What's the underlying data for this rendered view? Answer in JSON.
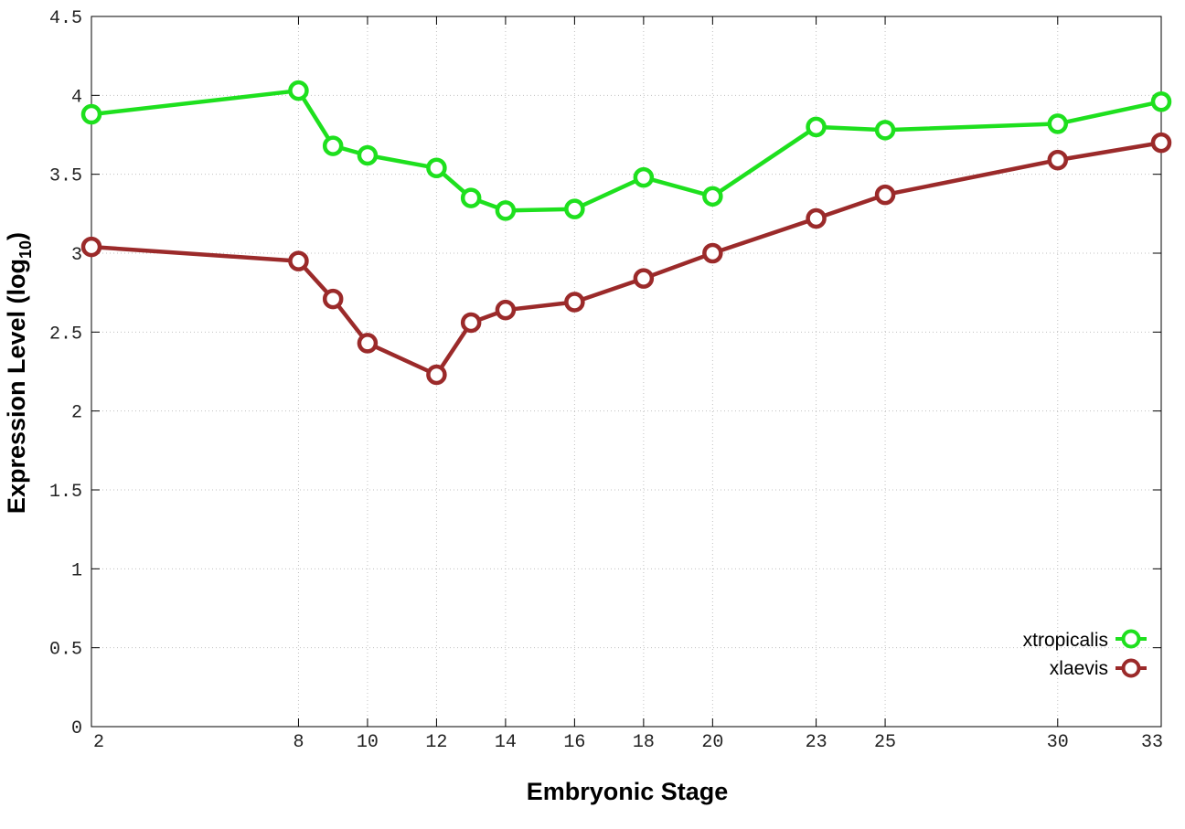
{
  "chart_data": {
    "type": "line",
    "xlabel": "Embryonic Stage",
    "ylabel_main": "Expression Level (log",
    "ylabel_sub": "10",
    "ylabel_close": ")",
    "x": [
      2,
      8,
      9,
      10,
      12,
      13,
      14,
      16,
      18,
      20,
      23,
      25,
      30,
      33
    ],
    "xticks": [
      "2",
      "8",
      "10",
      "12",
      "14",
      "16",
      "18",
      "20",
      "23",
      "25",
      "30",
      "33"
    ],
    "yticks": [
      "0",
      "0.5",
      "1",
      "1.5",
      "2",
      "2.5",
      "3",
      "3.5",
      "4",
      "4.5"
    ],
    "xlim": [
      2,
      33
    ],
    "ylim": [
      0,
      4.5
    ],
    "grid": true,
    "legend_position": "bottom-right",
    "series": [
      {
        "name": "xtropicalis",
        "color": "#1ee01e",
        "values": [
          3.88,
          4.03,
          3.68,
          3.62,
          3.54,
          3.35,
          3.27,
          3.28,
          3.48,
          3.36,
          3.8,
          3.78,
          3.82,
          3.96
        ]
      },
      {
        "name": "xlaevis",
        "color": "#9b2a2a",
        "values": [
          3.04,
          2.95,
          2.71,
          2.43,
          2.23,
          2.56,
          2.64,
          2.69,
          2.84,
          3.0,
          3.22,
          3.37,
          3.59,
          3.7
        ]
      }
    ]
  }
}
